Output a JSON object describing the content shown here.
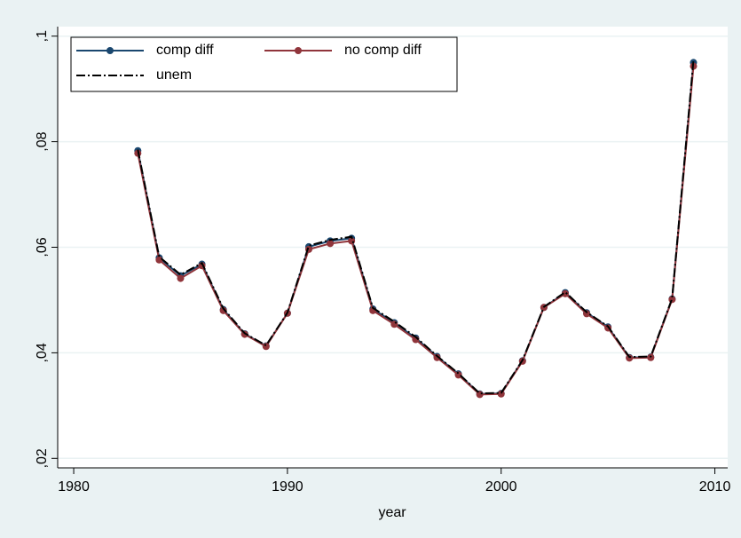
{
  "chart_data": {
    "type": "line",
    "x_label": "year",
    "x": [
      1983,
      1984,
      1985,
      1986,
      1987,
      1988,
      1989,
      1990,
      1991,
      1992,
      1993,
      1994,
      1995,
      1996,
      1997,
      1998,
      1999,
      2000,
      2001,
      2002,
      2003,
      2004,
      2005,
      2006,
      2007,
      2008,
      2009
    ],
    "series": [
      {
        "name": "comp diff",
        "color": "#1a476f",
        "markers": true,
        "line_style": "solid",
        "values": [
          0.0783,
          0.058,
          0.0546,
          0.0568,
          0.0482,
          0.0436,
          0.0413,
          0.0475,
          0.0601,
          0.0612,
          0.0617,
          0.0483,
          0.0457,
          0.0428,
          0.0393,
          0.036,
          0.0322,
          0.0323,
          0.0385,
          0.0486,
          0.0514,
          0.0476,
          0.0449,
          0.0391,
          0.0392,
          0.0502,
          0.095
        ]
      },
      {
        "name": "no comp diff",
        "color": "#90353b",
        "markers": true,
        "line_style": "solid",
        "values": [
          0.0778,
          0.0576,
          0.0541,
          0.0565,
          0.048,
          0.0435,
          0.0412,
          0.0475,
          0.0596,
          0.0607,
          0.0612,
          0.048,
          0.0454,
          0.0425,
          0.0391,
          0.0358,
          0.0321,
          0.0322,
          0.0384,
          0.0486,
          0.0512,
          0.0474,
          0.0447,
          0.039,
          0.0391,
          0.0501,
          0.0943
        ]
      },
      {
        "name": "unem",
        "color": "#000000",
        "markers": false,
        "line_style": "dash-dot",
        "values": [
          0.0785,
          0.0582,
          0.0548,
          0.057,
          0.0484,
          0.0437,
          0.0414,
          0.0476,
          0.0603,
          0.0614,
          0.062,
          0.0485,
          0.0459,
          0.043,
          0.0394,
          0.0361,
          0.0323,
          0.0324,
          0.0386,
          0.0487,
          0.0515,
          0.0477,
          0.045,
          0.0392,
          0.0393,
          0.0503,
          0.0955
        ]
      }
    ],
    "xlim": [
      1979.25,
      2010.6
    ],
    "xticks": [
      1980,
      1990,
      2000,
      2010
    ],
    "ylim": [
      0.0182,
      0.1018
    ],
    "yticks": [
      {
        "value": 0.02,
        "label": ",02"
      },
      {
        "value": 0.04,
        "label": ",04"
      },
      {
        "value": 0.06,
        "label": ",06"
      },
      {
        "value": 0.08,
        "label": ",08"
      },
      {
        "value": 0.1,
        "label": ",1"
      }
    ],
    "grid": true,
    "legend": "top-left"
  }
}
